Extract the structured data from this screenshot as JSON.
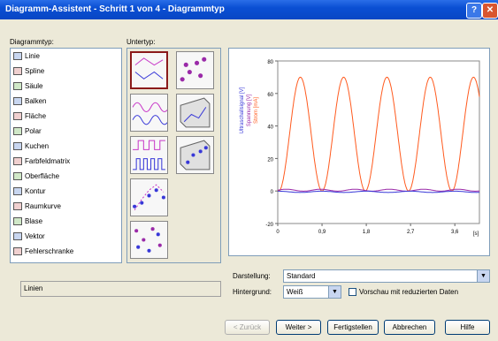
{
  "window": {
    "title": "Diagramm-Assistent - Schritt 1 von 4 - Diagrammtyp",
    "help_label": "?",
    "close_label": "✕"
  },
  "chart_types": {
    "label": "Diagrammtyp:",
    "items": [
      {
        "label": "Linie",
        "icon": "line-chart-icon"
      },
      {
        "label": "Spline",
        "icon": "spline-chart-icon"
      },
      {
        "label": "Säule",
        "icon": "column-chart-icon"
      },
      {
        "label": "Balken",
        "icon": "bar-chart-icon"
      },
      {
        "label": "Fläche",
        "icon": "area-chart-icon"
      },
      {
        "label": "Polar",
        "icon": "polar-chart-icon"
      },
      {
        "label": "Kuchen",
        "icon": "pie-chart-icon"
      },
      {
        "label": "Farbfeldmatrix",
        "icon": "color-matrix-icon"
      },
      {
        "label": "Oberfläche",
        "icon": "surface-chart-icon"
      },
      {
        "label": "Kontur",
        "icon": "contour-chart-icon"
      },
      {
        "label": "Raumkurve",
        "icon": "space-curve-icon"
      },
      {
        "label": "Blase",
        "icon": "bubble-chart-icon"
      },
      {
        "label": "Vektor",
        "icon": "vector-chart-icon"
      },
      {
        "label": "Fehlerschranke",
        "icon": "error-bar-icon"
      }
    ],
    "description": "Linien"
  },
  "subtypes": {
    "label": "Untertyp:"
  },
  "preview": {
    "legend": [
      "Ultraschallsignal [V]",
      "Spannung [V]",
      "Strom [mA]"
    ],
    "colors": {
      "orange": "#ff5a1e",
      "blue": "#3838d8",
      "purple": "#9a2aa8",
      "legend_axis": "#c828c8"
    },
    "x_ticks": [
      "0",
      "0,9",
      "1,8",
      "2,7",
      "3,6",
      "[s]"
    ],
    "y_ticks": [
      "80",
      "60",
      "40",
      "20",
      "0",
      "-20"
    ]
  },
  "chart_data": {
    "type": "line",
    "xlabel": "[s]",
    "xlim": [
      0,
      4.1
    ],
    "ylim": [
      -20,
      80
    ],
    "series": [
      {
        "name": "Strom [mA]",
        "amplitude": 35,
        "offset": 35,
        "period": 0.88
      },
      {
        "name": "Spannung [V]",
        "value": 0.5
      },
      {
        "name": "Ultraschallsignal [V]",
        "value": -0.5
      }
    ]
  },
  "display": {
    "label": "Darstellung:",
    "value": "Standard"
  },
  "background": {
    "label": "Hintergrund:",
    "value": "Weiß"
  },
  "preview_option": {
    "label": "Vorschau mit reduzierten Daten",
    "checked": false
  },
  "buttons": {
    "back": "< Zurück",
    "next": "Weiter >",
    "finish": "Fertigstellen",
    "cancel": "Abbrechen",
    "help": "Hilfe"
  }
}
